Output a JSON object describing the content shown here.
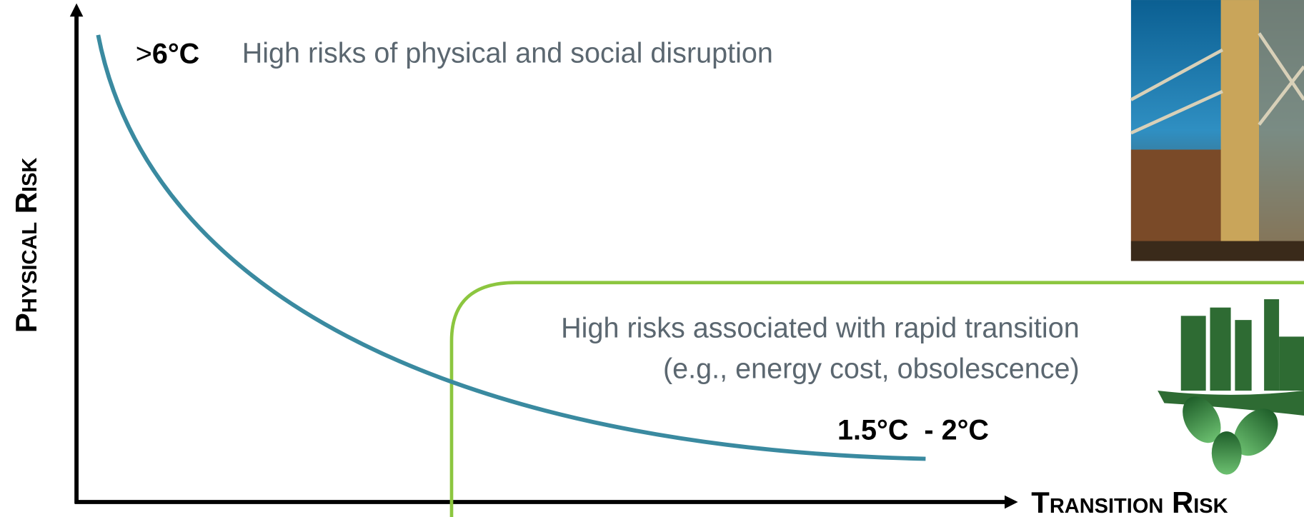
{
  "axes": {
    "y_label": "Physical Risk",
    "x_label": "Transition Risk"
  },
  "curve": {
    "high_prefix": ">",
    "high_label": "6°C",
    "high_description": "High risks of physical and social disruption",
    "low_label": "1.5°C  - 2°C"
  },
  "transition_box": {
    "line1": "High risks associated with rapid transition",
    "line2": "(e.g., energy cost, obsolescence)"
  }
}
